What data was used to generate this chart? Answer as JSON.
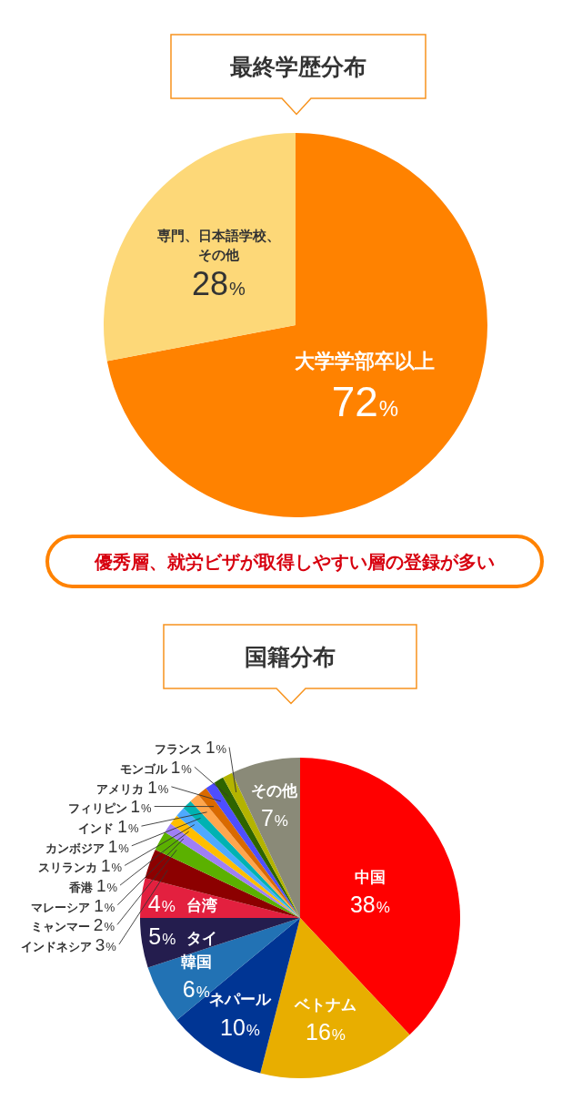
{
  "chart_data": [
    {
      "type": "pie",
      "title": "最終学歴分布",
      "categories": [
        "大学学部卒以上",
        "専門、日本語学校、その他"
      ],
      "values": [
        72,
        28
      ],
      "colors": [
        "#ff8200",
        "#fdd878"
      ],
      "value_labels": [
        "72%",
        "28%"
      ],
      "annotations": [
        "優秀層、就労ビザが取得しやすい層の登録が多い"
      ]
    },
    {
      "type": "pie",
      "title": "国籍分布",
      "categories": [
        "中国",
        "ベトナム",
        "ネパール",
        "韓国",
        "タイ",
        "台湾",
        "インドネシア",
        "ミャンマー",
        "マレーシア",
        "香港",
        "スリランカ",
        "カンボジア",
        "インド",
        "フィリピン",
        "アメリカ",
        "モンゴル",
        "フランス",
        "その他"
      ],
      "values": [
        38,
        16,
        10,
        6,
        5,
        4,
        3,
        2,
        1,
        1,
        1,
        1,
        1,
        1,
        1,
        1,
        1,
        7
      ],
      "colors": [
        "#ff0000",
        "#e8ae00",
        "#003594",
        "#2272b4",
        "#241d4e",
        "#e3203f",
        "#8c0000",
        "#5bb100",
        "#9f7ff5",
        "#ffbe00",
        "#4ea9ff",
        "#00b2b2",
        "#ffa64d",
        "#d96a00",
        "#4e4eff",
        "#2e6400",
        "#b3b300",
        "#8a8a78"
      ],
      "value_labels": [
        "38%",
        "16%",
        "10%",
        "6%",
        "5%",
        "4%",
        "3%",
        "2%",
        "1%",
        "1%",
        "1%",
        "1%",
        "1%",
        "1%",
        "1%",
        "1%",
        "1%",
        "7%"
      ]
    }
  ]
}
